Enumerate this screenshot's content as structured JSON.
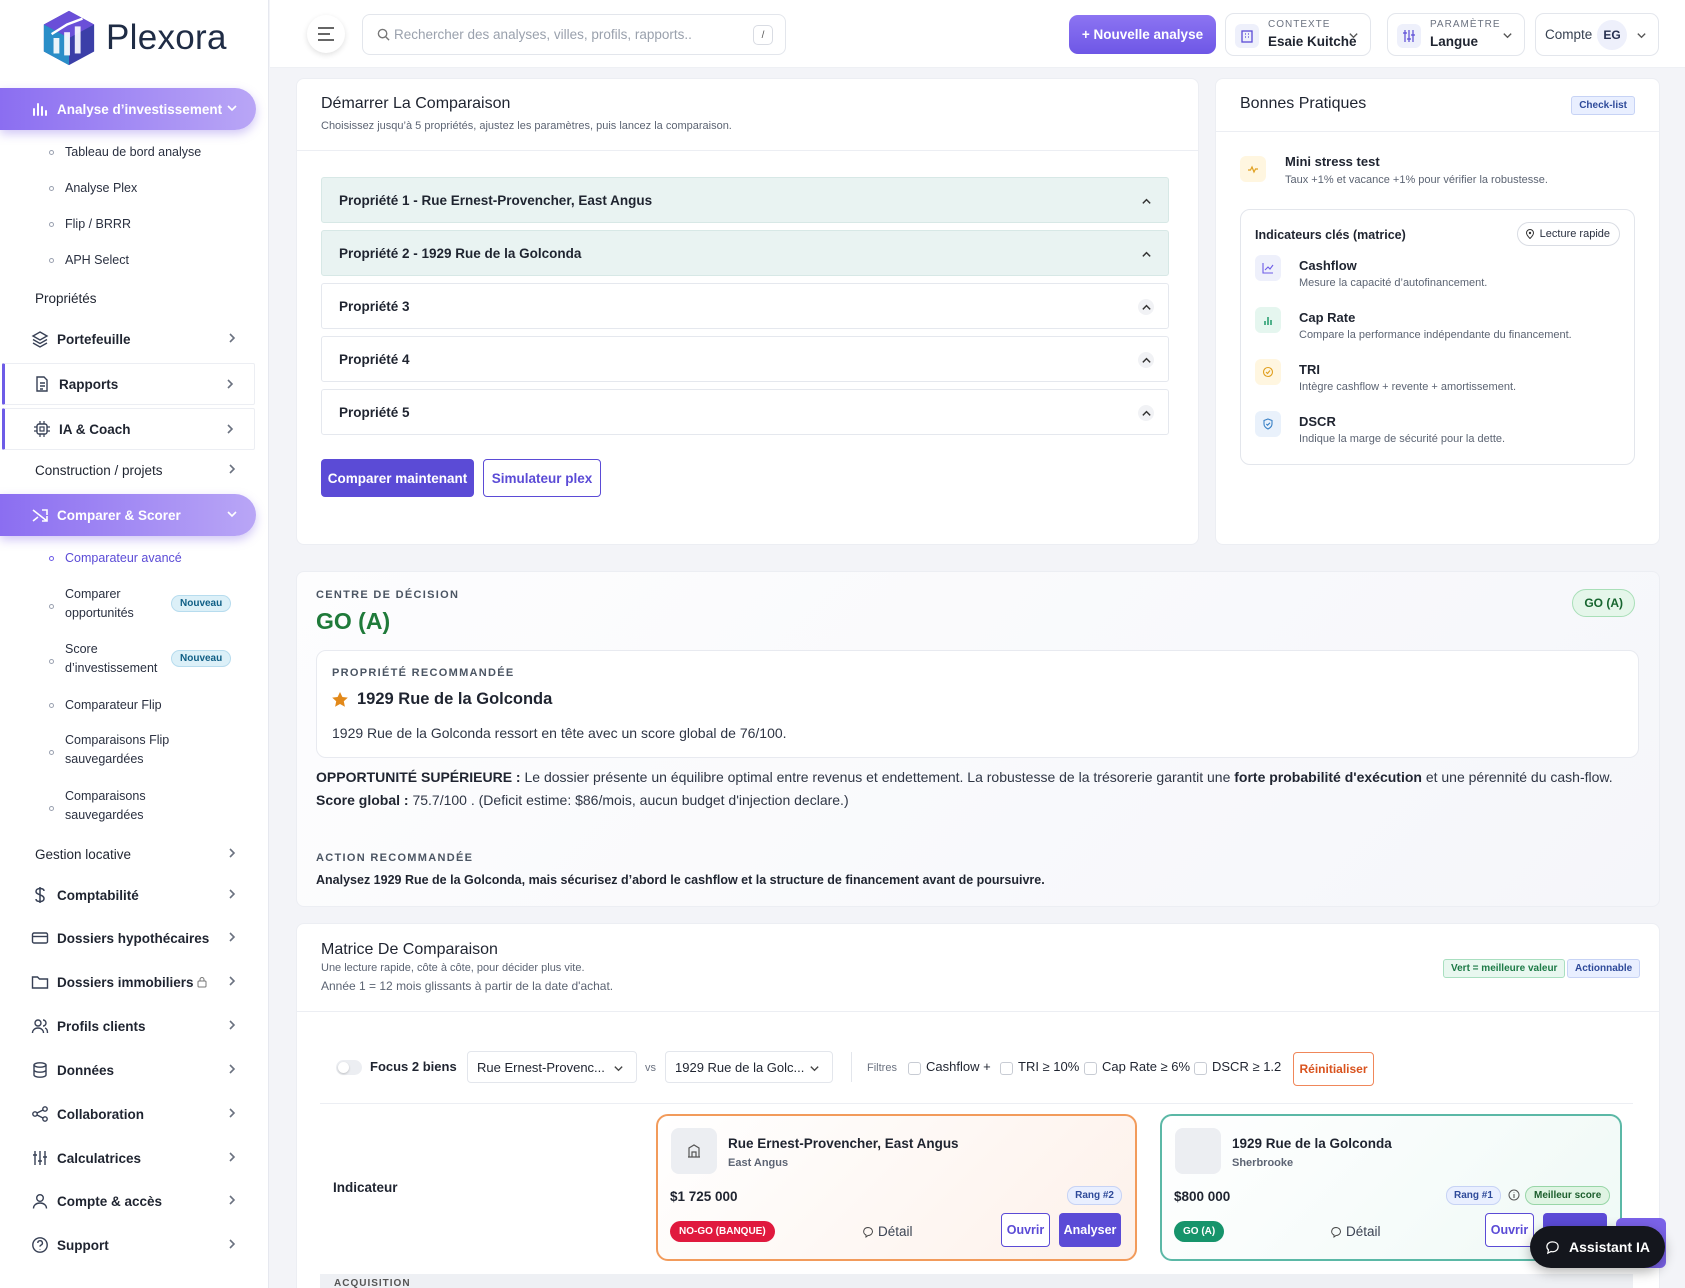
{
  "brand": {
    "name": "Plexora"
  },
  "sidebar": {
    "invest": {
      "label": "Analyse d’investissement"
    },
    "invest_sub": [
      "Tableau de bord analyse",
      "Analyse Plex",
      "Flip / BRRR",
      "APH Select"
    ],
    "proprietes": "Propriétés",
    "portefeuille": "Portefeuille",
    "rapports": "Rapports",
    "ia": "IA & Coach",
    "construction": "Construction / projets",
    "comparer": "Comparer & Scorer",
    "comparer_sub": [
      {
        "label": "Comparateur avancé"
      },
      {
        "label": "Comparer opportunités",
        "badge": "Nouveau"
      },
      {
        "label": "Score d’investissement",
        "badge": "Nouveau"
      },
      {
        "label": "Comparateur Flip"
      },
      {
        "label": "Comparaisons Flip sauvegardées"
      },
      {
        "label": "Comparaisons sauvegardées"
      }
    ],
    "gestion": "Gestion locative",
    "comptabilite": "Comptabilité",
    "hypo": "Dossiers hypothécaires",
    "immo": "Dossiers immobiliers",
    "profils": "Profils clients",
    "donnees": "Données",
    "collab": "Collaboration",
    "calc": "Calculatrices",
    "compte": "Compte & accès",
    "support": "Support"
  },
  "topbar": {
    "search_placeholder": "Rechercher des analyses, villes, profils, rapports..",
    "search_shortcut": "/",
    "new_analysis": "+ Nouvelle analyse",
    "context_caption": "CONTEXTE",
    "context_value": "Esaie Kuitche",
    "param_caption": "PARAMÈTRE",
    "param_value": "Langue",
    "account_label": "Compte",
    "account_initials": "EG"
  },
  "start": {
    "title": "Démarrer La Comparaison",
    "subtitle": "Choisissez jusqu’à 5 propriétés, ajustez les paramètres, puis lancez la comparaison.",
    "properties": [
      "Propriété 1 - Rue Ernest-Provencher, East Angus",
      "Propriété 2 - 1929 Rue de la Golconda",
      "Propriété 3",
      "Propriété 4",
      "Propriété 5"
    ],
    "compare_btn": "Comparer maintenant",
    "simulator_btn": "Simulateur plex"
  },
  "practices": {
    "title": "Bonnes Pratiques",
    "tag": "Check-list",
    "stress_title": "Mini stress test",
    "stress_desc": "Taux +1% et vacance +1% pour vérifier la robustesse.",
    "indicators_title": "Indicateurs clés (matrice)",
    "quick_read": "Lecture rapide",
    "indicators": [
      {
        "name": "Cashflow",
        "desc": "Mesure la capacité d’autofinancement."
      },
      {
        "name": "Cap Rate",
        "desc": "Compare la performance indépendante du financement."
      },
      {
        "name": "TRI",
        "desc": "Intègre cashflow + revente + amortissement."
      },
      {
        "name": "DSCR",
        "desc": "Indique la marge de sécurité pour la dette."
      }
    ]
  },
  "decision": {
    "caption": "CENTRE DE DÉCISION",
    "verdict": "GO (A)",
    "pill": "GO (A)",
    "rec_caption": "PROPRIÉTÉ RECOMMANDÉE",
    "rec_name": "1929 Rue de la Golconda",
    "rec_text": "1929 Rue de la Golconda ressort en tête avec un score global de 76/100.",
    "opp_label": "OPPORTUNITÉ SUPÉRIEURE :",
    "opp_text1": " Le dossier présente un équilibre optimal entre revenus et endettement. La robustesse de la trésorerie garantit une ",
    "opp_bold": "forte probabilité d'exécution",
    "opp_text2": " et une pérennité du cash-flow.",
    "score_label": "Score global :",
    "score_text": " 75.7/100 . (Deficit estime: $86/mois, aucun budget d'injection declare.)",
    "action_caption": "ACTION RECOMMANDÉE",
    "action_text": "Analysez 1929 Rue de la Golconda, mais sécurisez d’abord le cashflow et la structure de financement avant de poursuivre."
  },
  "matrix": {
    "title": "Matrice De Comparaison",
    "sub1": "Une lecture rapide, côte à côte, pour décider plus vite.",
    "sub2": "Année 1 = 12 mois glissants à partir de la date d'achat.",
    "chip_green": "Vert = meilleure valeur",
    "chip_action": "Actionnable",
    "focus_label": "Focus 2 biens",
    "select_a": "Rue Ernest-Provenc...",
    "vs": "vs",
    "select_b": "1929 Rue de la Golc...",
    "filters_label": "Filtres",
    "filters": [
      "Cashflow +",
      "TRI ≥ 10%",
      "Cap Rate ≥ 6%",
      "DSCR ≥ 1.2"
    ],
    "reset": "Réinitialiser",
    "indicator_label": "Indicateur",
    "section_label": "ACQUISITION",
    "cards": [
      {
        "name": "Rue Ernest-Provencher, East Angus",
        "city": "East Angus",
        "price": "$1 725 000",
        "rank": "Rang #2",
        "status": "NO-GO (BANQUE)",
        "detail": "Détail",
        "open": "Ouvrir",
        "analyze": "Analyser"
      },
      {
        "name": "1929 Rue de la Golconda",
        "city": "Sherbrooke",
        "price": "$800 000",
        "rank": "Rang #1",
        "best": "Meilleur score",
        "status": "GO (A)",
        "detail": "Détail",
        "open": "Ouvrir"
      }
    ]
  },
  "assistant": {
    "label": "Assistant IA"
  },
  "colors": {
    "accent": "#5b4bd6",
    "go": "#1f7a3a",
    "nogo": "#e0193e",
    "orange_border": "#f29b5b",
    "teal_border": "#5bb8a6"
  }
}
